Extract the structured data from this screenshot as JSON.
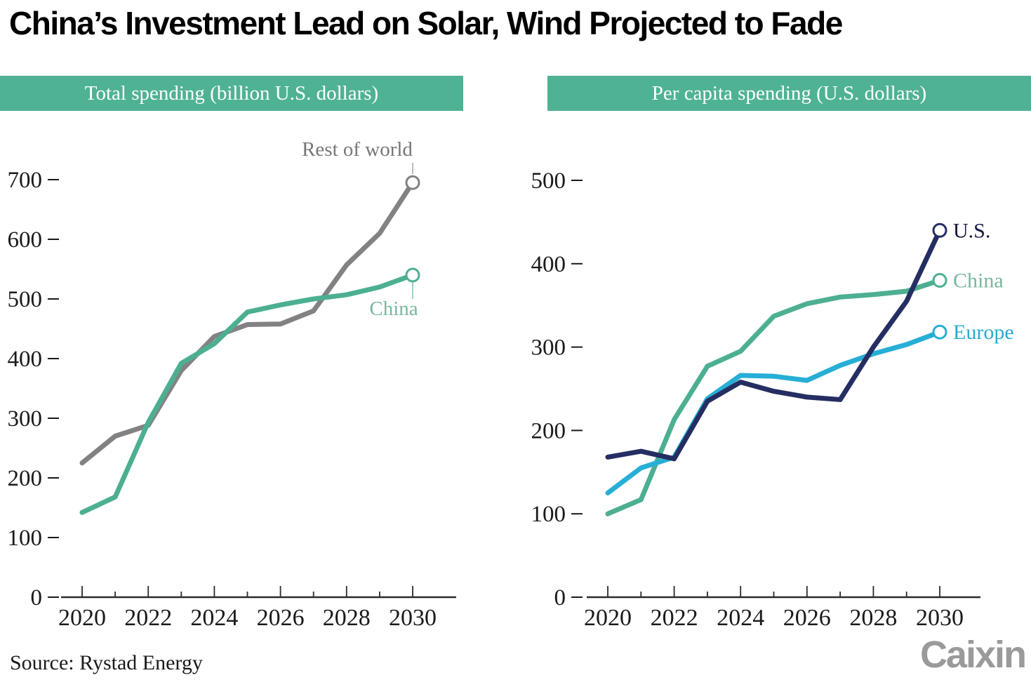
{
  "title": "China’s Investment Lead on Solar, Wind Projected to Fade",
  "source": {
    "text": "Source: Rystad Energy"
  },
  "logo": {
    "text": "Caixin",
    "color": "#9A9A9A"
  },
  "colors": {
    "header_bg": "#4FB294",
    "header_text": "#FFFFFF",
    "axis": "#2B2B2B",
    "tick_text": "#1A1A1A",
    "background": "#FFFFFF"
  },
  "chart_data": [
    {
      "type": "line",
      "title": "Total spending (billion U.S. dollars)",
      "unit": "billion U.S. dollars",
      "x": [
        2020,
        2021,
        2022,
        2023,
        2024,
        2025,
        2026,
        2027,
        2028,
        2029,
        2030
      ],
      "x_tick_labels": [
        2020,
        2022,
        2024,
        2026,
        2028,
        2030
      ],
      "ylim": [
        0,
        700
      ],
      "yticks": [
        0,
        100,
        200,
        300,
        400,
        500,
        600,
        700
      ],
      "grid": false,
      "legend_position": "end-of-line",
      "series": [
        {
          "name": "Rest of world",
          "color": "#828284",
          "label_color": "#76777A",
          "values": [
            225,
            270,
            288,
            380,
            437,
            457,
            458,
            480,
            557,
            610,
            695
          ]
        },
        {
          "name": "China",
          "color": "#4DAF92",
          "label_color": "#7AB79E",
          "values": [
            142,
            168,
            293,
            392,
            425,
            478,
            490,
            500,
            507,
            520,
            540
          ]
        }
      ]
    },
    {
      "type": "line",
      "title": "Per capita spending (U.S. dollars)",
      "unit": "U.S. dollars",
      "x": [
        2020,
        2021,
        2022,
        2023,
        2024,
        2025,
        2026,
        2027,
        2028,
        2029,
        2030
      ],
      "x_tick_labels": [
        2020,
        2022,
        2024,
        2026,
        2028,
        2030
      ],
      "ylim": [
        0,
        500
      ],
      "yticks": [
        0,
        100,
        200,
        300,
        400,
        500
      ],
      "grid": false,
      "legend_position": "end-of-line",
      "series": [
        {
          "name": "U.S.",
          "color": "#252E62",
          "label_color": "#14173B",
          "values": [
            168,
            175,
            166,
            235,
            258,
            247,
            240,
            237,
            300,
            355,
            440
          ]
        },
        {
          "name": "China",
          "color": "#4DAF92",
          "label_color": "#7AB79E",
          "values": [
            100,
            117,
            213,
            277,
            295,
            337,
            352,
            360,
            363,
            367,
            380
          ]
        },
        {
          "name": "Europe",
          "color": "#27AED6",
          "label_color": "#2AA9D2",
          "values": [
            125,
            155,
            168,
            238,
            266,
            265,
            260,
            278,
            292,
            303,
            318
          ]
        }
      ]
    }
  ]
}
